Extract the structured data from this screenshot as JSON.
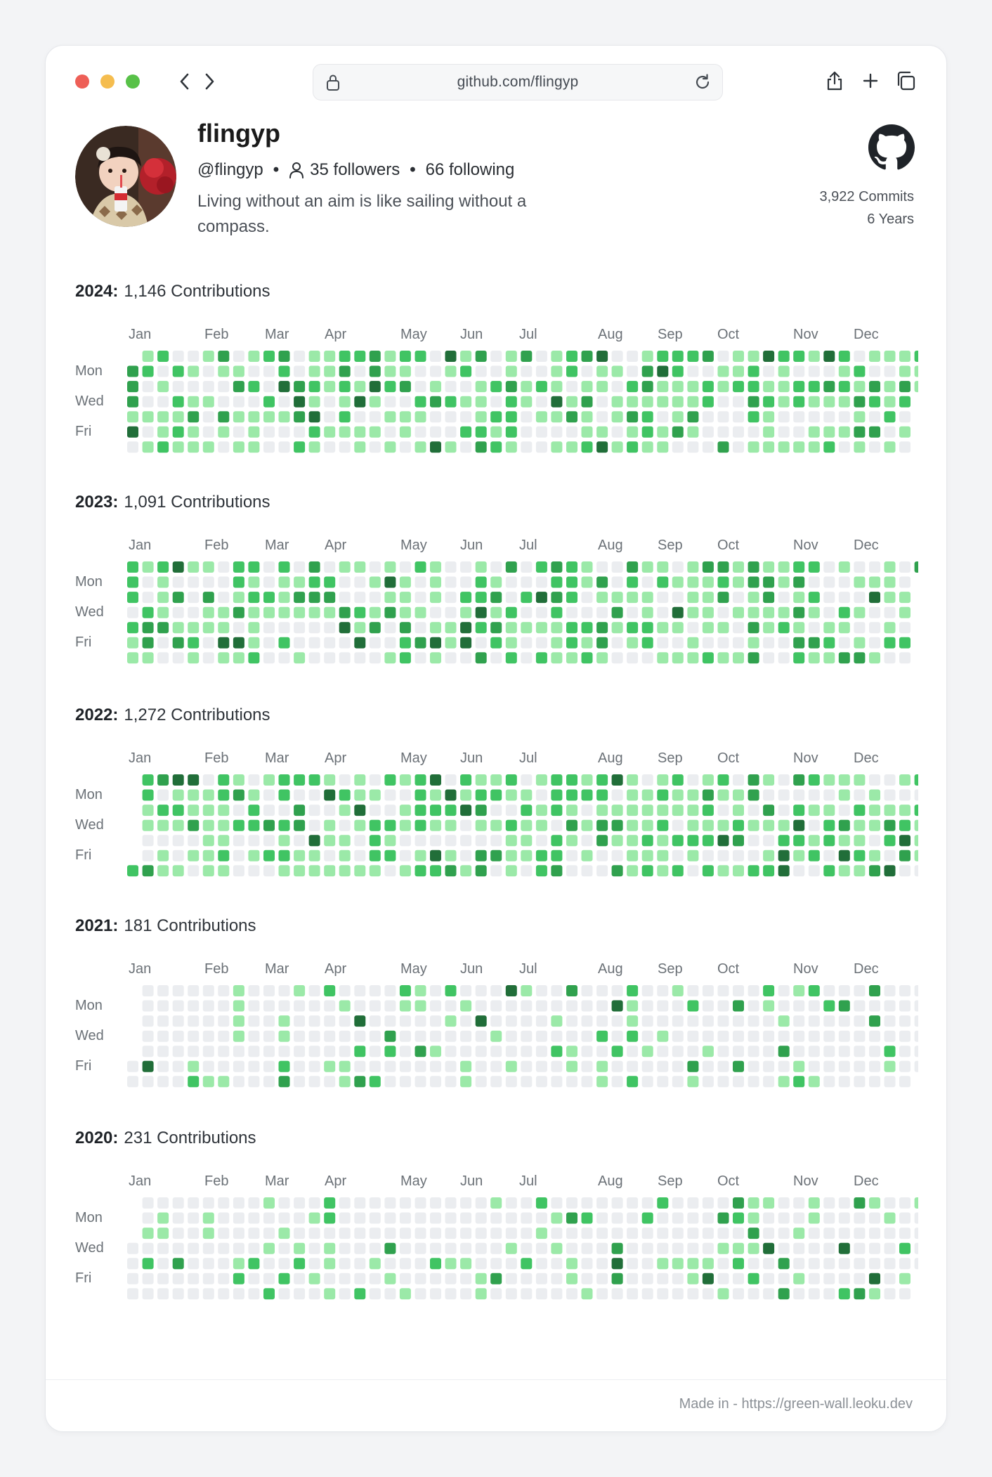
{
  "browser": {
    "url": "github.com/flingyp"
  },
  "profile": {
    "name": "flingyp",
    "handle": "@flingyp",
    "followers": "35 followers",
    "following": "66 following",
    "bio": "Living without an aim is like sailing without a compass.",
    "commits": "3,922 Commits",
    "years": "6 Years"
  },
  "months": [
    "Jan",
    "Feb",
    "Mar",
    "Apr",
    "May",
    "Jun",
    "Jul",
    "Aug",
    "Sep",
    "Oct",
    "Nov",
    "Dec"
  ],
  "days": [
    "Mon",
    "Wed",
    "Fri"
  ],
  "colors": {
    "level0": "#ebedf0",
    "level1": "#9be9a8",
    "level2": "#40c463",
    "level3": "#30a14e",
    "level4": "#216e39"
  },
  "years": [
    {
      "year": "2024:",
      "contributions": "1,146 Contributions",
      "count": 1146,
      "first_weekday": 1
    },
    {
      "year": "2023:",
      "contributions": "1,091 Contributions",
      "count": 1091,
      "first_weekday": 0
    },
    {
      "year": "2022:",
      "contributions": "1,272 Contributions",
      "count": 1272,
      "first_weekday": 6
    },
    {
      "year": "2021:",
      "contributions": "181 Contributions",
      "count": 181,
      "first_weekday": 5
    },
    {
      "year": "2020:",
      "contributions": "231 Contributions",
      "count": 231,
      "first_weekday": 3
    }
  ],
  "footer": "Made in - https://green-wall.leoku.dev"
}
